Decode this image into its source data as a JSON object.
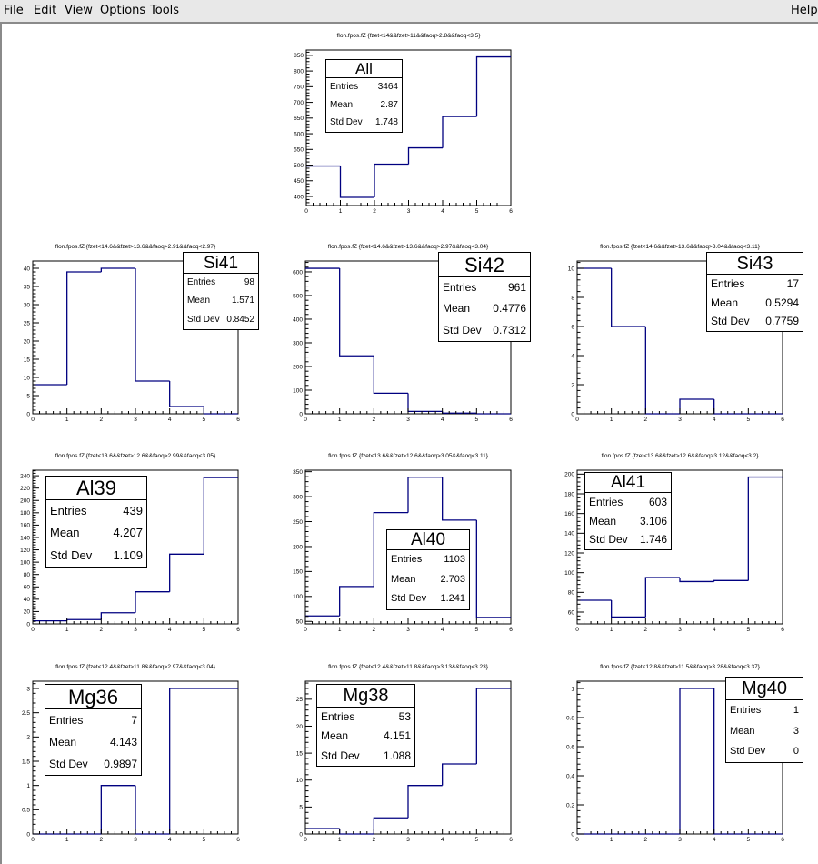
{
  "menubar": {
    "left": [
      {
        "label": "File",
        "mnemonic": "F",
        "rest": "ile"
      },
      {
        "label": "Edit",
        "mnemonic": "E",
        "rest": "dit"
      },
      {
        "label": "View",
        "mnemonic": "V",
        "rest": "iew"
      },
      {
        "label": "Options",
        "mnemonic": "O",
        "rest": "ptions"
      },
      {
        "label": "Tools",
        "mnemonic": "T",
        "rest": "ools"
      }
    ],
    "right": {
      "label": "Help",
      "mnemonic": "H",
      "rest": "elp"
    }
  },
  "colors": {
    "histogram_line": "#000080",
    "frame": "#000000"
  },
  "chart_data": [
    {
      "id": "all",
      "type": "bar",
      "style": "step-histogram",
      "title": "flon.fpos.fZ {fzet<14&&fzet>11&&faoq>2.8&&faoq<3.5}",
      "bin_edges": [
        0,
        1,
        2,
        3,
        4,
        5,
        6
      ],
      "values": [
        497,
        397,
        503,
        555,
        655,
        845
      ],
      "xlim": [
        0,
        6
      ],
      "ylim": [
        371,
        867
      ],
      "xticks": [
        0,
        1,
        2,
        3,
        4,
        5,
        6
      ],
      "yticks": [
        400,
        450,
        500,
        550,
        600,
        650,
        700,
        750,
        800,
        850
      ],
      "stats": {
        "name": "All",
        "rows": [
          [
            "Entries",
            "3464"
          ],
          [
            "Mean",
            "2.87"
          ],
          [
            "Std Dev",
            "1.748"
          ]
        ]
      },
      "stats_position": "top-left"
    },
    {
      "id": "si41",
      "type": "bar",
      "style": "step-histogram",
      "title": "flon.fpos.fZ {fzet<14.6&&fzet>13.6&&faoq>2.91&&faoq<2.97}",
      "bin_edges": [
        0,
        1,
        2,
        3,
        4,
        5,
        6
      ],
      "values": [
        8,
        39,
        40,
        9,
        2,
        0
      ],
      "xlim": [
        0,
        6
      ],
      "ylim": [
        0,
        42
      ],
      "xticks": [
        0,
        1,
        2,
        3,
        4,
        5,
        6
      ],
      "yticks": [
        0,
        5,
        10,
        15,
        20,
        25,
        30,
        35,
        40
      ],
      "stats": {
        "name": "Si41",
        "rows": [
          [
            "Entries",
            "98"
          ],
          [
            "Mean",
            "1.571"
          ],
          [
            "Std Dev",
            "0.8452"
          ]
        ]
      },
      "stats_position": "top-right"
    },
    {
      "id": "si42",
      "type": "bar",
      "style": "step-histogram",
      "title": "flon.fpos.fZ {fzet<14.6&&fzet>13.6&&faoq>2.97&&faoq<3.04}",
      "bin_edges": [
        0,
        1,
        2,
        3,
        4,
        5,
        6
      ],
      "values": [
        615,
        245,
        87,
        10,
        3,
        0
      ],
      "xlim": [
        0,
        6
      ],
      "ylim": [
        0,
        646
      ],
      "xticks": [
        0,
        1,
        2,
        3,
        4,
        5,
        6
      ],
      "yticks": [
        0,
        100,
        200,
        300,
        400,
        500,
        600
      ],
      "stats": {
        "name": "Si42",
        "rows": [
          [
            "Entries",
            "961"
          ],
          [
            "Mean",
            "0.4776"
          ],
          [
            "Std Dev",
            "0.7312"
          ]
        ]
      },
      "stats_position": "top-right"
    },
    {
      "id": "si43",
      "type": "bar",
      "style": "step-histogram",
      "title": "flon.fpos.fZ {fzet<14.6&&fzet>13.6&&faoq>3.04&&faoq<3.11}",
      "bin_edges": [
        0,
        1,
        2,
        3,
        4,
        5,
        6
      ],
      "values": [
        10,
        6,
        0,
        1,
        0,
        0
      ],
      "xlim": [
        0,
        6
      ],
      "ylim": [
        0,
        10.5
      ],
      "xticks": [
        0,
        1,
        2,
        3,
        4,
        5,
        6
      ],
      "yticks": [
        0,
        2,
        4,
        6,
        8,
        10
      ],
      "stats": {
        "name": "Si43",
        "rows": [
          [
            "Entries",
            "17"
          ],
          [
            "Mean",
            "0.5294"
          ],
          [
            "Std Dev",
            "0.7759"
          ]
        ]
      },
      "stats_position": "top-right"
    },
    {
      "id": "al39",
      "type": "bar",
      "style": "step-histogram",
      "title": "flon.fpos.fZ {fzet<13.6&&fzet>12.6&&faoq>2.99&&faoq<3.05}",
      "bin_edges": [
        0,
        1,
        2,
        3,
        4,
        5,
        6
      ],
      "values": [
        5,
        7,
        18,
        52,
        113,
        237
      ],
      "xlim": [
        0,
        6
      ],
      "ylim": [
        0,
        249
      ],
      "xticks": [
        0,
        1,
        2,
        3,
        4,
        5,
        6
      ],
      "yticks": [
        0,
        20,
        40,
        60,
        80,
        100,
        120,
        140,
        160,
        180,
        200,
        220,
        240
      ],
      "stats": {
        "name": "Al39",
        "rows": [
          [
            "Entries",
            "439"
          ],
          [
            "Mean",
            "4.207"
          ],
          [
            "Std Dev",
            "1.109"
          ]
        ]
      },
      "stats_position": "top-left"
    },
    {
      "id": "al40",
      "type": "bar",
      "style": "step-histogram",
      "title": "flon.fpos.fZ {fzet<13.6&&fzet>12.6&&faoq>3.05&&faoq<3.11}",
      "bin_edges": [
        0,
        1,
        2,
        3,
        4,
        5,
        6
      ],
      "values": [
        61,
        120,
        268,
        339,
        253,
        58
      ],
      "xlim": [
        0,
        6
      ],
      "ylim": [
        45,
        353
      ],
      "xticks": [
        0,
        1,
        2,
        3,
        4,
        5,
        6
      ],
      "yticks": [
        50,
        100,
        150,
        200,
        250,
        300,
        350
      ],
      "stats": {
        "name": "Al40",
        "rows": [
          [
            "Entries",
            "1103"
          ],
          [
            "Mean",
            "2.703"
          ],
          [
            "Std Dev",
            "1.241"
          ]
        ]
      },
      "stats_position": "center"
    },
    {
      "id": "al41",
      "type": "bar",
      "style": "step-histogram",
      "title": "flon.fpos.fZ {fzet<13.6&&fzet>12.6&&faoq>3.12&&faoq<3.2}",
      "bin_edges": [
        0,
        1,
        2,
        3,
        4,
        5,
        6
      ],
      "values": [
        72,
        55,
        95,
        91,
        92,
        197
      ],
      "xlim": [
        0,
        6
      ],
      "ylim": [
        48,
        204
      ],
      "xticks": [
        0,
        1,
        2,
        3,
        4,
        5,
        6
      ],
      "yticks": [
        60,
        80,
        100,
        120,
        140,
        160,
        180,
        200
      ],
      "stats": {
        "name": "Al41",
        "rows": [
          [
            "Entries",
            "603"
          ],
          [
            "Mean",
            "3.106"
          ],
          [
            "Std Dev",
            "1.746"
          ]
        ]
      },
      "stats_position": "top-left"
    },
    {
      "id": "mg36",
      "type": "bar",
      "style": "step-histogram",
      "title": "flon.fpos.fZ {fzet<12.4&&fzet>11.8&&faoq>2.97&&faoq<3.04}",
      "bin_edges": [
        0,
        1,
        2,
        3,
        4,
        5,
        6
      ],
      "values": [
        0,
        0,
        1,
        0,
        3,
        3
      ],
      "xlim": [
        0,
        6
      ],
      "ylim": [
        0,
        3.15
      ],
      "xticks": [
        0,
        1,
        2,
        3,
        4,
        5,
        6
      ],
      "yticks": [
        0,
        0.5,
        1,
        1.5,
        2,
        2.5,
        3
      ],
      "stats": {
        "name": "Mg36",
        "rows": [
          [
            "Entries",
            "7"
          ],
          [
            "Mean",
            "4.143"
          ],
          [
            "Std Dev",
            "0.9897"
          ]
        ]
      },
      "stats_position": "top-left"
    },
    {
      "id": "mg38",
      "type": "bar",
      "style": "step-histogram",
      "title": "flon.fpos.fZ {fzet<12.4&&fzet>11.8&&faoq>3.13&&faoq<3.23}",
      "bin_edges": [
        0,
        1,
        2,
        3,
        4,
        5,
        6
      ],
      "values": [
        1,
        0,
        3,
        9,
        13,
        27
      ],
      "xlim": [
        0,
        6
      ],
      "ylim": [
        0,
        28.35
      ],
      "xticks": [
        0,
        1,
        2,
        3,
        4,
        5,
        6
      ],
      "yticks": [
        0,
        5,
        10,
        15,
        20,
        25
      ],
      "stats": {
        "name": "Mg38",
        "rows": [
          [
            "Entries",
            "53"
          ],
          [
            "Mean",
            "4.151"
          ],
          [
            "Std Dev",
            "1.088"
          ]
        ]
      },
      "stats_position": "top-left"
    },
    {
      "id": "mg40",
      "type": "bar",
      "style": "step-histogram",
      "title": "flon.fpos.fZ {fzet<12.8&&fzet>11.5&&faoq>3.28&&faoq<3.37}",
      "bin_edges": [
        0,
        1,
        2,
        3,
        4,
        5,
        6
      ],
      "values": [
        0,
        0,
        0,
        1,
        0,
        0
      ],
      "xlim": [
        0,
        6
      ],
      "ylim": [
        0,
        1.05
      ],
      "xticks": [
        0,
        1,
        2,
        3,
        4,
        5,
        6
      ],
      "yticks": [
        0,
        0.2,
        0.4,
        0.6,
        0.8,
        1
      ],
      "stats": {
        "name": "Mg40",
        "rows": [
          [
            "Entries",
            "1"
          ],
          [
            "Mean",
            "3"
          ],
          [
            "Std Dev",
            "0"
          ]
        ]
      },
      "stats_position": "top-right"
    }
  ]
}
